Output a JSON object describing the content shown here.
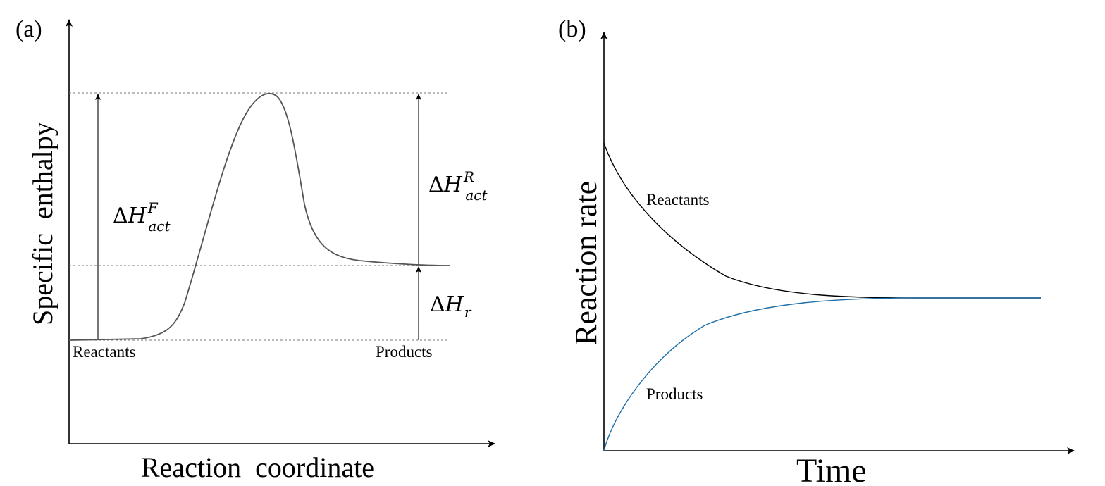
{
  "panel_a": {
    "label": "(a)",
    "x_axis_title": "Reaction  coordinate",
    "y_axis_title": "Specific  enthalpy",
    "reactants_label": "Reactants",
    "products_label": "Products",
    "forward_activation": {
      "delta": "Δ",
      "symbol": "H",
      "superscript": "F",
      "subscript": "act"
    },
    "reverse_activation": {
      "delta": "Δ",
      "symbol": "H",
      "superscript": "R",
      "subscript": "act"
    },
    "reaction_enthalpy": {
      "delta": "Δ",
      "symbol": "H",
      "subscript": "r"
    }
  },
  "panel_b": {
    "label": "(b)",
    "x_axis_title": "Time",
    "y_axis_title": "Reaction rate",
    "series": [
      {
        "name": "Reactants",
        "color": "#000000"
      },
      {
        "name": "Products",
        "color": "#1f6fa8"
      }
    ]
  }
}
